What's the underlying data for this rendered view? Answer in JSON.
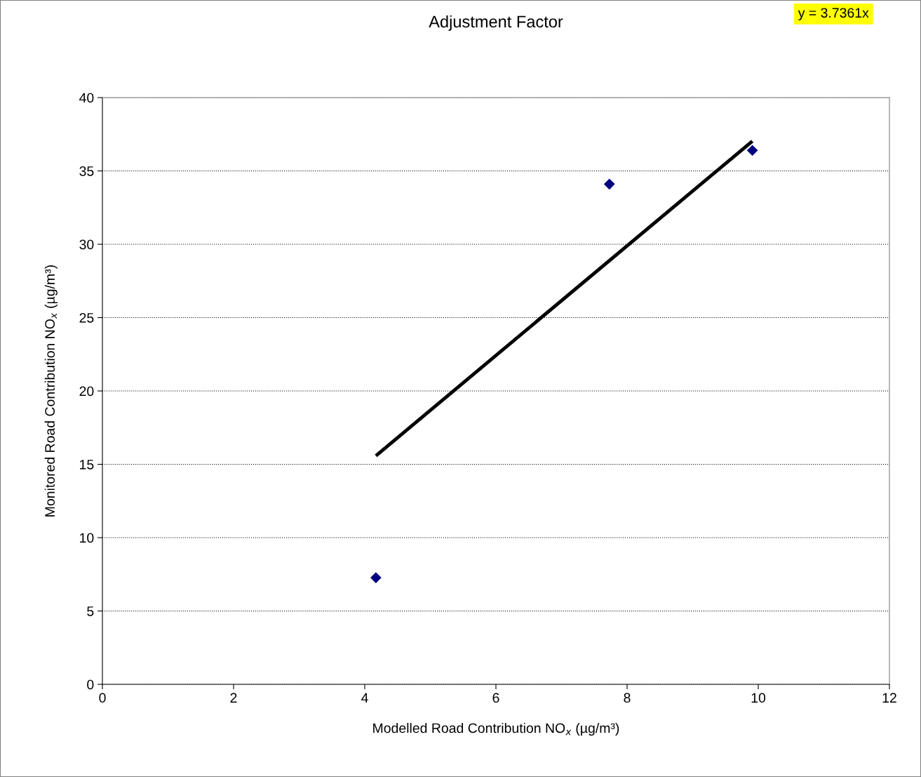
{
  "chart_data": {
    "type": "scatter",
    "title": "Adjustment Factor",
    "xlabel": "Modelled Road Contribution NO$_{x}$ (µg/m³)",
    "ylabel": "Monitored Road Contribution NO$_{x}$ (µg/m³)",
    "annotations": [
      "y = 3.7361x"
    ],
    "series": [
      {
        "color": "#000080",
        "marker": "diamond",
        "x": [
          4.17,
          7.73,
          9.91
        ],
        "values": [
          7.27,
          34.1,
          36.4
        ]
      },
      {
        "type": "line",
        "color": "#000000",
        "marker": "none",
        "line_style": "solid",
        "x": [
          4.17,
          9.91
        ],
        "values": [
          15.58,
          37.03
        ]
      }
    ],
    "xlim": [
      0,
      12
    ],
    "xticks": [
      0,
      2,
      4,
      6,
      8,
      10,
      12
    ],
    "ylim": [
      0,
      40
    ],
    "yticks": [
      0,
      5,
      10,
      15,
      20,
      25,
      30,
      35,
      40
    ],
    "grid": "y",
    "legend": false
  }
}
